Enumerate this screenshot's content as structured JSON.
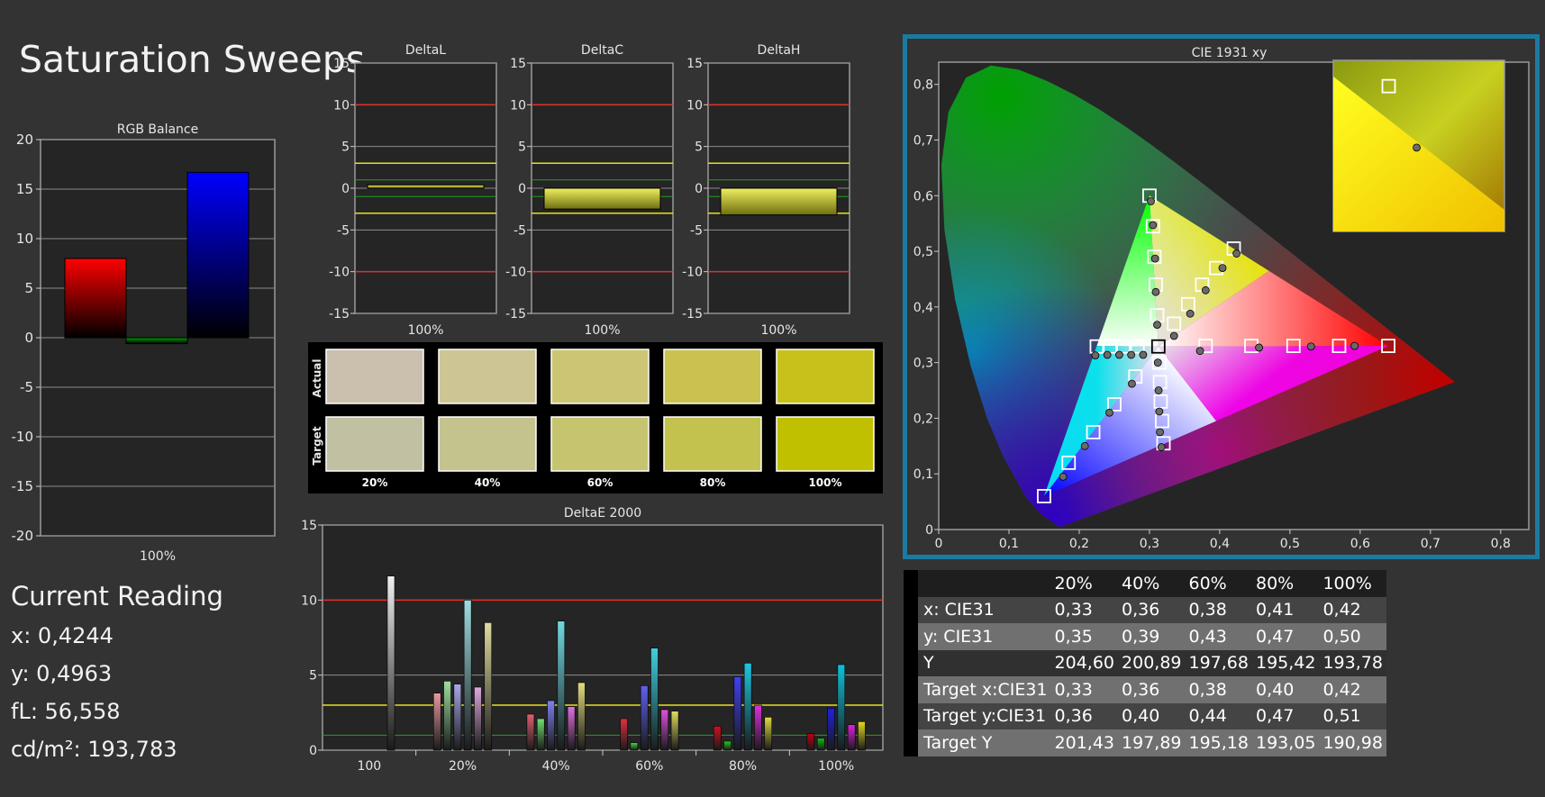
{
  "page": {
    "title": "Saturation Sweeps",
    "current_reading": {
      "title": "Current Reading",
      "x": "x: 0,4244",
      "y": "y: 0,4963",
      "fL": "fL: 56,558",
      "cdm2": "cd/m²: 193,783"
    }
  },
  "swatches": {
    "row_labels": [
      "Actual",
      "Target"
    ],
    "labels": [
      "20%",
      "40%",
      "60%",
      "80%",
      "100%"
    ],
    "actual_colors": [
      "#cbbfae",
      "#cdc593",
      "#ccc574",
      "#c9c24f",
      "#c8c11c"
    ],
    "target_colors": [
      "#c1c0a3",
      "#c5c38d",
      "#c6c46f",
      "#c4c24e",
      "#c1c000"
    ]
  },
  "table": {
    "headers": [
      "",
      "20%",
      "40%",
      "60%",
      "80%",
      "100%"
    ],
    "rows": [
      [
        "x: CIE31",
        "0,33",
        "0,36",
        "0,38",
        "0,41",
        "0,42"
      ],
      [
        "y: CIE31",
        "0,35",
        "0,39",
        "0,43",
        "0,47",
        "0,50"
      ],
      [
        "Y",
        "204,60",
        "200,89",
        "197,68",
        "195,42",
        "193,78"
      ],
      [
        "Target x:CIE31",
        "0,33",
        "0,36",
        "0,38",
        "0,40",
        "0,42"
      ],
      [
        "Target y:CIE31",
        "0,36",
        "0,40",
        "0,44",
        "0,47",
        "0,51"
      ],
      [
        "Target Y",
        "201,43",
        "197,89",
        "195,18",
        "193,05",
        "190,98"
      ]
    ]
  },
  "colors": {
    "panel_bg": "#252525",
    "grid": "#8c8c8c",
    "red_line": "#e03030",
    "yellow_line": "#e8e020",
    "green_line": "#20a020",
    "frame": "#1b7aa0"
  },
  "chart_data": [
    {
      "type": "bar",
      "title": "RGB Balance",
      "categories": [
        "100%"
      ],
      "series": [
        {
          "values": [
            8.0
          ],
          "color": "#ff0000"
        },
        {
          "values": [
            -0.6
          ],
          "color": "#00a000"
        },
        {
          "values": [
            16.7
          ],
          "color": "#0000ff"
        }
      ],
      "ylim": [
        -20,
        20
      ],
      "yticks": [
        20,
        15,
        10,
        5,
        0,
        -5,
        -10,
        -15,
        -20
      ]
    },
    {
      "type": "bar",
      "title": "DeltaL",
      "categories": [
        "100%"
      ],
      "values": [
        0.4
      ],
      "ylim": [
        -15,
        15
      ],
      "yticks": [
        15,
        10,
        5,
        0,
        -5,
        -10,
        -15
      ],
      "red_lines": [
        10,
        -10
      ],
      "yellow_lines": [
        3,
        -3
      ],
      "green_lines": [
        1,
        -1
      ]
    },
    {
      "type": "bar",
      "title": "DeltaC",
      "categories": [
        "100%"
      ],
      "values": [
        -2.5
      ],
      "ylim": [
        -15,
        15
      ],
      "yticks": [
        15,
        10,
        5,
        0,
        -5,
        -10,
        -15
      ],
      "red_lines": [
        10,
        -10
      ],
      "yellow_lines": [
        3,
        -3
      ],
      "green_lines": [
        1,
        -1
      ]
    },
    {
      "type": "bar",
      "title": "DeltaH",
      "categories": [
        "100%"
      ],
      "values": [
        -3.2
      ],
      "ylim": [
        -15,
        15
      ],
      "yticks": [
        15,
        10,
        5,
        0,
        -5,
        -10,
        -15
      ],
      "red_lines": [
        10,
        -10
      ],
      "yellow_lines": [
        3,
        -3
      ],
      "green_lines": [
        1,
        -1
      ]
    },
    {
      "type": "bar",
      "title": "DeltaE 2000",
      "categories": [
        "100",
        "20%",
        "40%",
        "60%",
        "80%",
        "100%"
      ],
      "groups": [
        {
          "values": [
            11.6
          ],
          "colors": [
            "#f0f0f0"
          ]
        },
        {
          "values": [
            3.8,
            4.6,
            4.4,
            10.0,
            4.2,
            8.5
          ],
          "colors": [
            "#e89aa0",
            "#a0e0a0",
            "#a8a8e8",
            "#a0dce0",
            "#e0a8e0",
            "#e0dca0"
          ]
        },
        {
          "values": [
            2.4,
            2.1,
            3.3,
            8.6,
            2.9,
            4.5
          ],
          "colors": [
            "#e06070",
            "#70e070",
            "#8080f0",
            "#70d8e0",
            "#e070e0",
            "#e0dc80"
          ]
        },
        {
          "values": [
            2.1,
            0.5,
            4.3,
            6.8,
            2.7,
            2.6
          ],
          "colors": [
            "#e03040",
            "#40e040",
            "#6060f0",
            "#40d0e0",
            "#e050e0",
            "#e0dc60"
          ]
        },
        {
          "values": [
            1.6,
            0.6,
            4.9,
            5.8,
            3.0,
            2.2
          ],
          "colors": [
            "#d01020",
            "#20d020",
            "#4040f0",
            "#20c8e0",
            "#e030e0",
            "#e0dc40"
          ]
        },
        {
          "values": [
            1.1,
            0.8,
            2.8,
            5.7,
            1.7,
            1.9
          ],
          "colors": [
            "#c00010",
            "#10c010",
            "#2020e0",
            "#10c0d8",
            "#e020e0",
            "#e0dc20"
          ]
        }
      ],
      "ylim": [
        0,
        15
      ],
      "yticks": [
        15,
        10,
        5,
        0
      ],
      "red_lines": [
        10
      ],
      "yellow_lines": [
        3
      ],
      "green_lines": [
        1
      ]
    },
    {
      "type": "scatter",
      "title": "CIE 1931 xy",
      "xlim": [
        0,
        0.84
      ],
      "ylim": [
        0,
        0.84
      ],
      "xticks": [
        "0",
        "0,1",
        "0,2",
        "0,3",
        "0,4",
        "0,5",
        "0,6",
        "0,7",
        "0,8"
      ],
      "yticks": [
        "0",
        "0,1",
        "0,2",
        "0,3",
        "0,4",
        "0,5",
        "0,6",
        "0,7",
        "0,8"
      ],
      "gamut_triangle": [
        [
          0.64,
          0.33
        ],
        [
          0.3,
          0.6
        ],
        [
          0.15,
          0.06
        ]
      ],
      "white_point": [
        0.3127,
        0.329
      ],
      "targets": [
        [
          0.64,
          0.33
        ],
        [
          0.57,
          0.33
        ],
        [
          0.505,
          0.33
        ],
        [
          0.445,
          0.33
        ],
        [
          0.38,
          0.33
        ],
        [
          0.3,
          0.6
        ],
        [
          0.305,
          0.545
        ],
        [
          0.307,
          0.49
        ],
        [
          0.309,
          0.44
        ],
        [
          0.311,
          0.385
        ],
        [
          0.15,
          0.06
        ],
        [
          0.185,
          0.12
        ],
        [
          0.22,
          0.175
        ],
        [
          0.25,
          0.225
        ],
        [
          0.28,
          0.275
        ],
        [
          0.225,
          0.329
        ],
        [
          0.244,
          0.329
        ],
        [
          0.263,
          0.329
        ],
        [
          0.283,
          0.329
        ],
        [
          0.42,
          0.505
        ],
        [
          0.395,
          0.47
        ],
        [
          0.375,
          0.44
        ],
        [
          0.355,
          0.405
        ],
        [
          0.335,
          0.37
        ],
        [
          0.32,
          0.155
        ],
        [
          0.318,
          0.195
        ],
        [
          0.316,
          0.23
        ],
        [
          0.315,
          0.265
        ],
        [
          0.314,
          0.3
        ],
        [
          0.3127,
          0.329
        ]
      ],
      "measured": [
        [
          0.592,
          0.33
        ],
        [
          0.53,
          0.329
        ],
        [
          0.456,
          0.327
        ],
        [
          0.372,
          0.321
        ],
        [
          0.302,
          0.59
        ],
        [
          0.305,
          0.547
        ],
        [
          0.308,
          0.487
        ],
        [
          0.309,
          0.427
        ],
        [
          0.311,
          0.368
        ],
        [
          0.177,
          0.095
        ],
        [
          0.208,
          0.15
        ],
        [
          0.243,
          0.21
        ],
        [
          0.275,
          0.262
        ],
        [
          0.223,
          0.313
        ],
        [
          0.24,
          0.314
        ],
        [
          0.257,
          0.314
        ],
        [
          0.274,
          0.314
        ],
        [
          0.291,
          0.314
        ],
        [
          0.424,
          0.496
        ],
        [
          0.404,
          0.47
        ],
        [
          0.38,
          0.43
        ],
        [
          0.358,
          0.388
        ],
        [
          0.335,
          0.348
        ],
        [
          0.317,
          0.148
        ],
        [
          0.315,
          0.175
        ],
        [
          0.314,
          0.212
        ],
        [
          0.313,
          0.25
        ],
        [
          0.312,
          0.3
        ]
      ],
      "inset_target": [
        0.419,
        0.507
      ],
      "inset_measured": [
        0.424,
        0.496
      ]
    }
  ]
}
